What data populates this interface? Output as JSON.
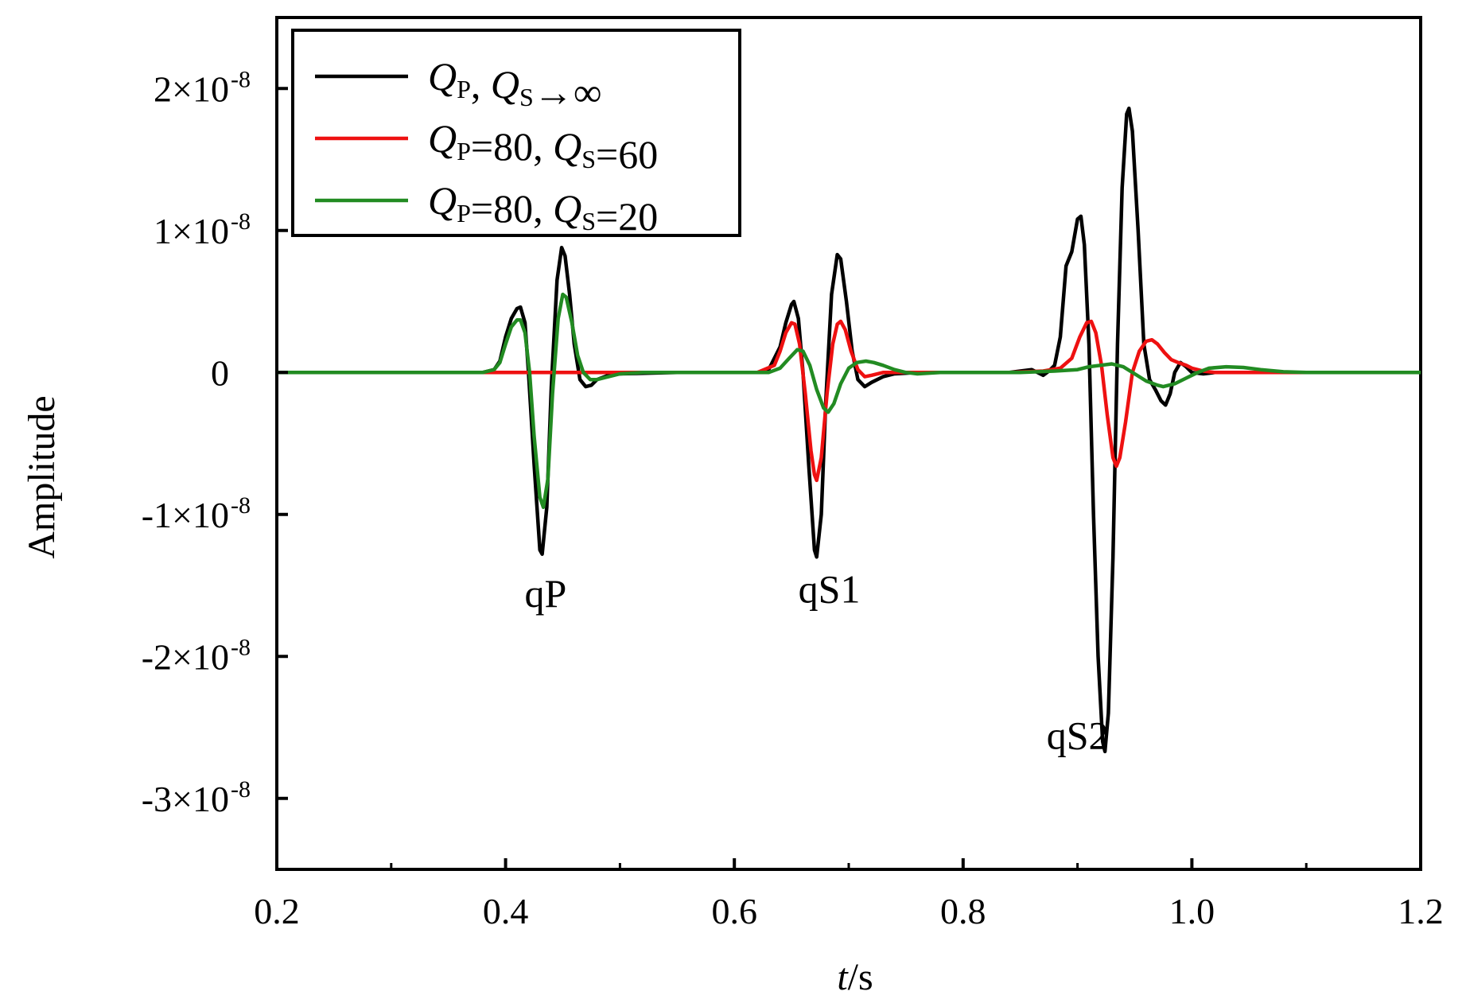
{
  "chart_data": {
    "type": "line",
    "title": "",
    "xlabel_italic": "t",
    "xlabel_unit": "/s",
    "ylabel": "Amplitude",
    "xlim": [
      0.2,
      1.2
    ],
    "ylim": [
      -3.5e-08,
      2.5e-08
    ],
    "x_ticks": [
      0.2,
      0.4,
      0.6,
      0.8,
      1.0,
      1.2
    ],
    "x_tick_labels": [
      "0.2",
      "0.4",
      "0.6",
      "0.8",
      "1.0",
      "1.2"
    ],
    "y_ticks": [
      {
        "value": 2e-08,
        "mant": "2×10",
        "exp": "-8"
      },
      {
        "value": 1e-08,
        "mant": "1×10",
        "exp": "-8"
      },
      {
        "value": 0,
        "mant": "0",
        "exp": ""
      },
      {
        "value": -1e-08,
        "mant": "-1×10",
        "exp": "-8"
      },
      {
        "value": -2e-08,
        "mant": "-2×10",
        "exp": "-8"
      },
      {
        "value": -3e-08,
        "mant": "-3×10",
        "exp": "-8"
      }
    ],
    "grid": false,
    "legend_position": "top-left",
    "series": [
      {
        "label_parts": [
          {
            "t": "Q",
            "style": "italic"
          },
          {
            "t": "P",
            "style": "sub"
          },
          {
            "t": ", ",
            "style": ""
          },
          {
            "t": "Q",
            "style": "italic"
          },
          {
            "t": "S",
            "style": "sub"
          },
          {
            "t": "→∞",
            "style": ""
          }
        ],
        "color": "#000000",
        "points": [
          [
            0.2,
            0
          ],
          [
            0.38,
            0
          ],
          [
            0.39,
            2e-10
          ],
          [
            0.395,
            8e-10
          ],
          [
            0.4,
            2.5e-09
          ],
          [
            0.405,
            3.8e-09
          ],
          [
            0.41,
            4.5e-09
          ],
          [
            0.413,
            4.6e-09
          ],
          [
            0.417,
            3.5e-09
          ],
          [
            0.42,
            0.0
          ],
          [
            0.425,
            -6.5e-09
          ],
          [
            0.43,
            -1.25e-08
          ],
          [
            0.432,
            -1.28e-08
          ],
          [
            0.436,
            -9.5e-09
          ],
          [
            0.44,
            -1e-09
          ],
          [
            0.445,
            6.5e-09
          ],
          [
            0.449,
            8.8e-09
          ],
          [
            0.452,
            8.2e-09
          ],
          [
            0.456,
            5.5e-09
          ],
          [
            0.46,
            2e-09
          ],
          [
            0.465,
            -5e-10
          ],
          [
            0.47,
            -1e-09
          ],
          [
            0.475,
            -9e-10
          ],
          [
            0.48,
            -5e-10
          ],
          [
            0.49,
            -2e-10
          ],
          [
            0.5,
            -1e-10
          ],
          [
            0.55,
            0
          ],
          [
            0.62,
            0
          ],
          [
            0.63,
            2e-10
          ],
          [
            0.64,
            1.8e-09
          ],
          [
            0.645,
            3.5e-09
          ],
          [
            0.65,
            4.8e-09
          ],
          [
            0.652,
            5e-09
          ],
          [
            0.656,
            3.8e-09
          ],
          [
            0.66,
            0.0
          ],
          [
            0.665,
            -6.5e-09
          ],
          [
            0.67,
            -1.25e-08
          ],
          [
            0.672,
            -1.3e-08
          ],
          [
            0.676,
            -1e-08
          ],
          [
            0.68,
            -2e-09
          ],
          [
            0.685,
            5.5e-09
          ],
          [
            0.69,
            8.3e-09
          ],
          [
            0.693,
            8e-09
          ],
          [
            0.698,
            5e-09
          ],
          [
            0.703,
            1.5e-09
          ],
          [
            0.708,
            -5e-10
          ],
          [
            0.714,
            -1e-09
          ],
          [
            0.72,
            -7e-10
          ],
          [
            0.73,
            -3e-10
          ],
          [
            0.74,
            -1e-10
          ],
          [
            0.76,
            0
          ],
          [
            0.84,
            0
          ],
          [
            0.85,
            1e-10
          ],
          [
            0.86,
            2e-10
          ],
          [
            0.865,
            0.0
          ],
          [
            0.87,
            -2e-10
          ],
          [
            0.875,
            1e-10
          ],
          [
            0.88,
            5e-10
          ],
          [
            0.885,
            2.5e-09
          ],
          [
            0.89,
            7.5e-09
          ],
          [
            0.895,
            8.5e-09
          ],
          [
            0.9,
            1.08e-08
          ],
          [
            0.903,
            1.1e-08
          ],
          [
            0.906,
            9e-09
          ],
          [
            0.91,
            2e-09
          ],
          [
            0.914,
            -1e-08
          ],
          [
            0.918,
            -2e-08
          ],
          [
            0.922,
            -2.6e-08
          ],
          [
            0.924,
            -2.67e-08
          ],
          [
            0.927,
            -2.4e-08
          ],
          [
            0.931,
            -1.3e-08
          ],
          [
            0.935,
            2e-09
          ],
          [
            0.939,
            1.3e-08
          ],
          [
            0.943,
            1.82e-08
          ],
          [
            0.945,
            1.86e-08
          ],
          [
            0.948,
            1.7e-08
          ],
          [
            0.953,
            1e-08
          ],
          [
            0.958,
            2e-09
          ],
          [
            0.963,
            -5e-10
          ],
          [
            0.968,
            -1.2e-09
          ],
          [
            0.973,
            -2e-09
          ],
          [
            0.977,
            -2.3e-09
          ],
          [
            0.981,
            -1.5e-09
          ],
          [
            0.985,
            0.0
          ],
          [
            0.99,
            7e-10
          ],
          [
            0.995,
            4e-10
          ],
          [
            1.0,
            0.0
          ],
          [
            1.01,
            -1e-10
          ],
          [
            1.02,
            0.0
          ],
          [
            1.05,
            0
          ],
          [
            1.2,
            0
          ]
        ]
      },
      {
        "label_parts": [
          {
            "t": "Q",
            "style": "italic"
          },
          {
            "t": "P",
            "style": "sub"
          },
          {
            "t": "=80, ",
            "style": ""
          },
          {
            "t": "Q",
            "style": "italic"
          },
          {
            "t": "S",
            "style": "sub"
          },
          {
            "t": "=60",
            "style": ""
          }
        ],
        "color": "#ee1111",
        "points": [
          [
            0.2,
            0
          ],
          [
            0.62,
            0
          ],
          [
            0.635,
            5e-10
          ],
          [
            0.64,
            1.5e-09
          ],
          [
            0.645,
            2.8e-09
          ],
          [
            0.65,
            3.5e-09
          ],
          [
            0.653,
            3.4e-09
          ],
          [
            0.657,
            2e-09
          ],
          [
            0.662,
            -1.5e-09
          ],
          [
            0.667,
            -5.5e-09
          ],
          [
            0.67,
            -7.2e-09
          ],
          [
            0.672,
            -7.6e-09
          ],
          [
            0.676,
            -6e-09
          ],
          [
            0.681,
            -1.5e-09
          ],
          [
            0.686,
            2e-09
          ],
          [
            0.69,
            3.4e-09
          ],
          [
            0.693,
            3.6e-09
          ],
          [
            0.697,
            3e-09
          ],
          [
            0.702,
            1.5e-09
          ],
          [
            0.708,
            2e-10
          ],
          [
            0.714,
            -3e-10
          ],
          [
            0.72,
            -2e-10
          ],
          [
            0.73,
            0
          ],
          [
            0.84,
            0
          ],
          [
            0.87,
            1e-10
          ],
          [
            0.885,
            3e-10
          ],
          [
            0.895,
            1e-09
          ],
          [
            0.902,
            2.5e-09
          ],
          [
            0.908,
            3.5e-09
          ],
          [
            0.912,
            3.6e-09
          ],
          [
            0.916,
            2.8e-09
          ],
          [
            0.921,
            5e-10
          ],
          [
            0.926,
            -3e-09
          ],
          [
            0.931,
            -6e-09
          ],
          [
            0.934,
            -6.6e-09
          ],
          [
            0.937,
            -6e-09
          ],
          [
            0.942,
            -3.5e-09
          ],
          [
            0.948,
            0.0
          ],
          [
            0.954,
            1.5e-09
          ],
          [
            0.96,
            2.2e-09
          ],
          [
            0.965,
            2.3e-09
          ],
          [
            0.97,
            2e-09
          ],
          [
            0.976,
            1.4e-09
          ],
          [
            0.982,
            9e-10
          ],
          [
            0.988,
            7e-10
          ],
          [
            0.995,
            5e-10
          ],
          [
            1.0,
            3e-10
          ],
          [
            1.01,
            1e-10
          ],
          [
            1.02,
            0.0
          ],
          [
            1.04,
            0
          ],
          [
            1.2,
            0
          ]
        ]
      },
      {
        "label_parts": [
          {
            "t": "Q",
            "style": "italic"
          },
          {
            "t": "P",
            "style": "sub"
          },
          {
            "t": "=80, ",
            "style": ""
          },
          {
            "t": "Q",
            "style": "italic"
          },
          {
            "t": "S",
            "style": "sub"
          },
          {
            "t": "=20",
            "style": ""
          }
        ],
        "color": "#228b22",
        "points": [
          [
            0.2,
            0
          ],
          [
            0.38,
            0
          ],
          [
            0.39,
            2e-10
          ],
          [
            0.395,
            7e-10
          ],
          [
            0.4,
            2e-09
          ],
          [
            0.405,
            3.2e-09
          ],
          [
            0.41,
            3.7e-09
          ],
          [
            0.413,
            3.7e-09
          ],
          [
            0.417,
            2.8e-09
          ],
          [
            0.421,
            0.0
          ],
          [
            0.425,
            -4.5e-09
          ],
          [
            0.43,
            -8.8e-09
          ],
          [
            0.433,
            -9.5e-09
          ],
          [
            0.437,
            -7.5e-09
          ],
          [
            0.441,
            -1.5e-09
          ],
          [
            0.446,
            3.8e-09
          ],
          [
            0.45,
            5.5e-09
          ],
          [
            0.453,
            5.3e-09
          ],
          [
            0.458,
            3.5e-09
          ],
          [
            0.463,
            1.2e-09
          ],
          [
            0.468,
            0.0
          ],
          [
            0.474,
            -5e-10
          ],
          [
            0.48,
            -5e-10
          ],
          [
            0.49,
            -3e-10
          ],
          [
            0.5,
            -1e-10
          ],
          [
            0.52,
            0
          ],
          [
            0.63,
            0
          ],
          [
            0.64,
            3e-10
          ],
          [
            0.648,
            1e-09
          ],
          [
            0.655,
            1.6e-09
          ],
          [
            0.66,
            1.5e-09
          ],
          [
            0.666,
            5e-10
          ],
          [
            0.672,
            -1.2e-09
          ],
          [
            0.678,
            -2.5e-09
          ],
          [
            0.682,
            -2.8e-09
          ],
          [
            0.687,
            -2.2e-09
          ],
          [
            0.693,
            -8e-10
          ],
          [
            0.7,
            3e-10
          ],
          [
            0.707,
            7e-10
          ],
          [
            0.715,
            8e-10
          ],
          [
            0.722,
            7e-10
          ],
          [
            0.73,
            5e-10
          ],
          [
            0.74,
            2e-10
          ],
          [
            0.75,
            0.0
          ],
          [
            0.76,
            -1e-10
          ],
          [
            0.78,
            0
          ],
          [
            0.85,
            0
          ],
          [
            0.88,
            1e-10
          ],
          [
            0.9,
            2e-10
          ],
          [
            0.91,
            4e-10
          ],
          [
            0.92,
            5e-10
          ],
          [
            0.93,
            6e-10
          ],
          [
            0.94,
            4e-10
          ],
          [
            0.95,
            -1e-10
          ],
          [
            0.96,
            -6e-10
          ],
          [
            0.97,
            -9e-10
          ],
          [
            0.975,
            -1e-09
          ],
          [
            0.985,
            -8e-10
          ],
          [
            0.995,
            -4e-10
          ],
          [
            1.005,
            0.0
          ],
          [
            1.015,
            3e-10
          ],
          [
            1.03,
            4e-10
          ],
          [
            1.045,
            3.5e-10
          ],
          [
            1.06,
            2e-10
          ],
          [
            1.08,
            5e-11
          ],
          [
            1.1,
            0
          ],
          [
            1.2,
            0
          ]
        ]
      }
    ],
    "annotations": [
      {
        "text": "qP",
        "x": 0.435,
        "y": -1.65e-08
      },
      {
        "text": "qS1",
        "x": 0.683,
        "y": -1.62e-08
      },
      {
        "text": "qS2",
        "x": 0.9,
        "y": -2.65e-08
      }
    ]
  }
}
